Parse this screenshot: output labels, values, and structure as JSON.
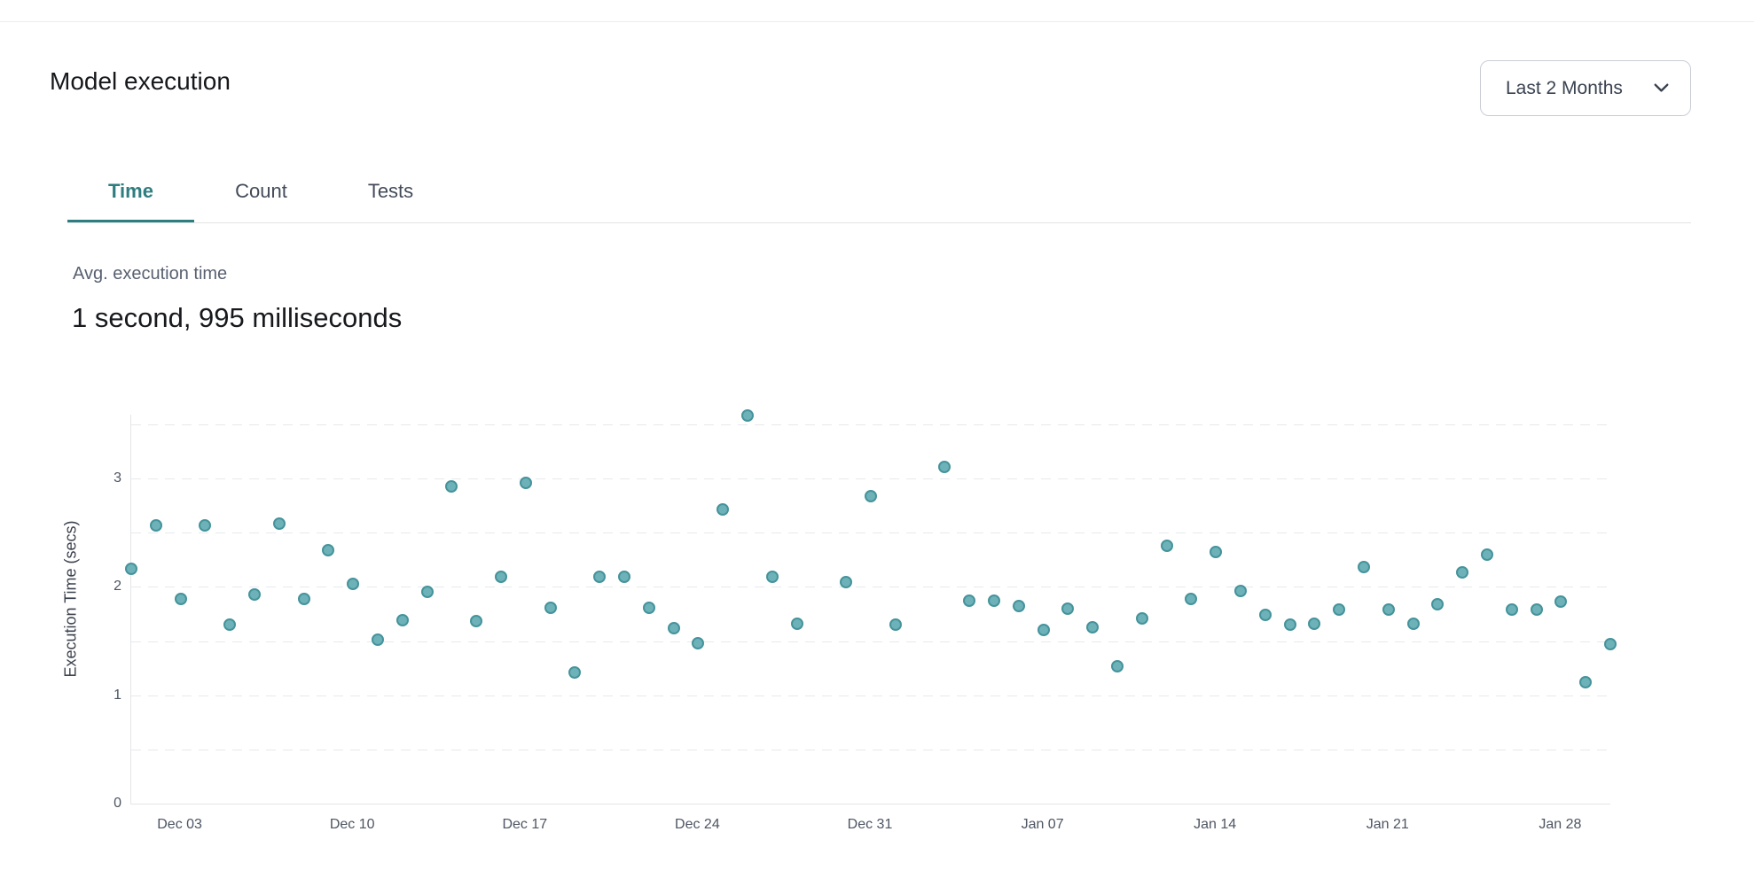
{
  "header": {
    "title": "Model execution",
    "time_range": {
      "value": "Last 2 Months",
      "icon": "chevron-down"
    }
  },
  "tabs": [
    {
      "label": "Time",
      "active": true
    },
    {
      "label": "Count",
      "active": false
    },
    {
      "label": "Tests",
      "active": false
    }
  ],
  "metric": {
    "label": "Avg. execution time",
    "value": "1 second, 995 milliseconds"
  },
  "colors": {
    "accent": "#2e7d80",
    "marker_fill": "#6db2b8",
    "marker_stroke": "#45939b"
  },
  "chart_data": {
    "type": "scatter",
    "title": "",
    "xlabel": "",
    "ylabel": "Execution Time (secs)",
    "x_tick_labels": [
      "Dec 03",
      "Dec 10",
      "Dec 17",
      "Dec 24",
      "Dec 31",
      "Jan 07",
      "Jan 14",
      "Jan 21",
      "Jan 28"
    ],
    "y_tick_labels": [
      0,
      1,
      2,
      3
    ],
    "ylim": [
      0,
      3.6
    ],
    "grid": {
      "orientation": "horizontal",
      "step": 0.5,
      "max": 3.5,
      "style": "dashed"
    },
    "legend": "none",
    "marker": {
      "shape": "circle",
      "fill": "#6db2b8",
      "stroke": "#45939b"
    },
    "points": [
      {
        "date": "Dec 01",
        "value": 2.17
      },
      {
        "date": "Dec 02",
        "value": 2.57
      },
      {
        "date": "Dec 03",
        "value": 1.89
      },
      {
        "date": "Dec 04",
        "value": 2.57
      },
      {
        "date": "Dec 05",
        "value": 1.65
      },
      {
        "date": "Dec 06",
        "value": 1.93
      },
      {
        "date": "Dec 07",
        "value": 2.58
      },
      {
        "date": "Dec 08",
        "value": 1.89
      },
      {
        "date": "Dec 09",
        "value": 2.34
      },
      {
        "date": "Dec 10",
        "value": 2.03
      },
      {
        "date": "Dec 11",
        "value": 1.51
      },
      {
        "date": "Dec 12",
        "value": 1.69
      },
      {
        "date": "Dec 13",
        "value": 1.95
      },
      {
        "date": "Dec 14",
        "value": 2.93
      },
      {
        "date": "Dec 15",
        "value": 1.68
      },
      {
        "date": "Dec 16",
        "value": 2.09
      },
      {
        "date": "Dec 17",
        "value": 2.96
      },
      {
        "date": "Dec 18",
        "value": 1.81
      },
      {
        "date": "Dec 19",
        "value": 1.21
      },
      {
        "date": "Dec 20",
        "value": 2.09
      },
      {
        "date": "Dec 21",
        "value": 2.09
      },
      {
        "date": "Dec 22",
        "value": 1.81
      },
      {
        "date": "Dec 23",
        "value": 1.62
      },
      {
        "date": "Dec 24",
        "value": 1.48
      },
      {
        "date": "Dec 25",
        "value": 2.71
      },
      {
        "date": "Dec 26",
        "value": 3.58
      },
      {
        "date": "Dec 27",
        "value": 2.09
      },
      {
        "date": "Dec 28",
        "value": 1.66
      },
      {
        "date": "Dec 30",
        "value": 2.04
      },
      {
        "date": "Dec 31",
        "value": 2.84
      },
      {
        "date": "Jan 01",
        "value": 1.65
      },
      {
        "date": "Jan 03",
        "value": 3.11
      },
      {
        "date": "Jan 04",
        "value": 1.87
      },
      {
        "date": "Jan 05",
        "value": 1.87
      },
      {
        "date": "Jan 06",
        "value": 1.82
      },
      {
        "date": "Jan 07",
        "value": 1.6
      },
      {
        "date": "Jan 08",
        "value": 1.8
      },
      {
        "date": "Jan 09",
        "value": 1.63
      },
      {
        "date": "Jan 10",
        "value": 1.27
      },
      {
        "date": "Jan 11",
        "value": 1.71
      },
      {
        "date": "Jan 12",
        "value": 2.38
      },
      {
        "date": "Jan 13",
        "value": 1.89
      },
      {
        "date": "Jan 14",
        "value": 2.32
      },
      {
        "date": "Jan 15",
        "value": 1.96
      },
      {
        "date": "Jan 16",
        "value": 1.74
      },
      {
        "date": "Jan 17",
        "value": 1.65
      },
      {
        "date": "Jan 18",
        "value": 1.66
      },
      {
        "date": "Jan 19",
        "value": 1.79
      },
      {
        "date": "Jan 20",
        "value": 2.18
      },
      {
        "date": "Jan 21",
        "value": 1.79
      },
      {
        "date": "Jan 22",
        "value": 1.66
      },
      {
        "date": "Jan 23",
        "value": 1.84
      },
      {
        "date": "Jan 24",
        "value": 2.13
      },
      {
        "date": "Jan 25",
        "value": 2.3
      },
      {
        "date": "Jan 26",
        "value": 1.79
      },
      {
        "date": "Jan 27",
        "value": 1.79
      },
      {
        "date": "Jan 28",
        "value": 1.86
      },
      {
        "date": "Jan 29",
        "value": 1.12
      },
      {
        "date": "Jan 30",
        "value": 1.47
      }
    ]
  }
}
